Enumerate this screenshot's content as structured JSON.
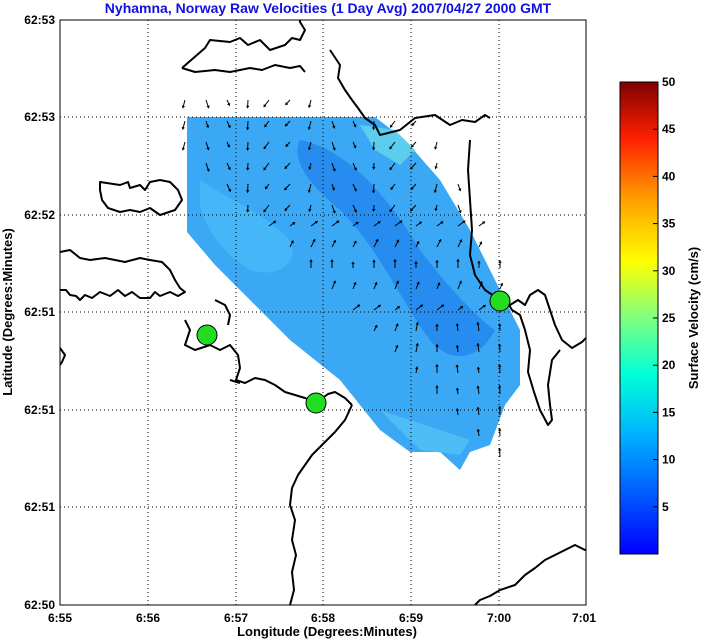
{
  "chart_data": {
    "type": "vector-field",
    "title": "Nyhamna, Norway Raw Velocities (1 Day Avg) 2007/04/27 2000 GMT",
    "xlabel": "Longitude (Degrees:Minutes)",
    "ylabel": "Latitude (Degrees:Minutes)",
    "x_ticks": [
      "6:55",
      "6:56",
      "6:57",
      "6:58",
      "6:59",
      "7:00",
      "7:01"
    ],
    "y_ticks": [
      "62:53",
      "62:53",
      "62:52",
      "62:51",
      "62:51",
      "62:51",
      "62:50"
    ],
    "grid": true,
    "colorbar": {
      "label": "Surface Velocity (cm/s)",
      "ticks": [
        "5",
        "10",
        "15",
        "20",
        "25",
        "30",
        "35",
        "40",
        "45",
        "50"
      ],
      "range": [
        0,
        50
      ],
      "colormap": "jet"
    },
    "field_speed_range_cm_s": [
      2,
      12
    ],
    "radar_sites": 3,
    "site_color": "#22dd22",
    "arrow_color": "#000000",
    "coastline_color": "#000000"
  }
}
